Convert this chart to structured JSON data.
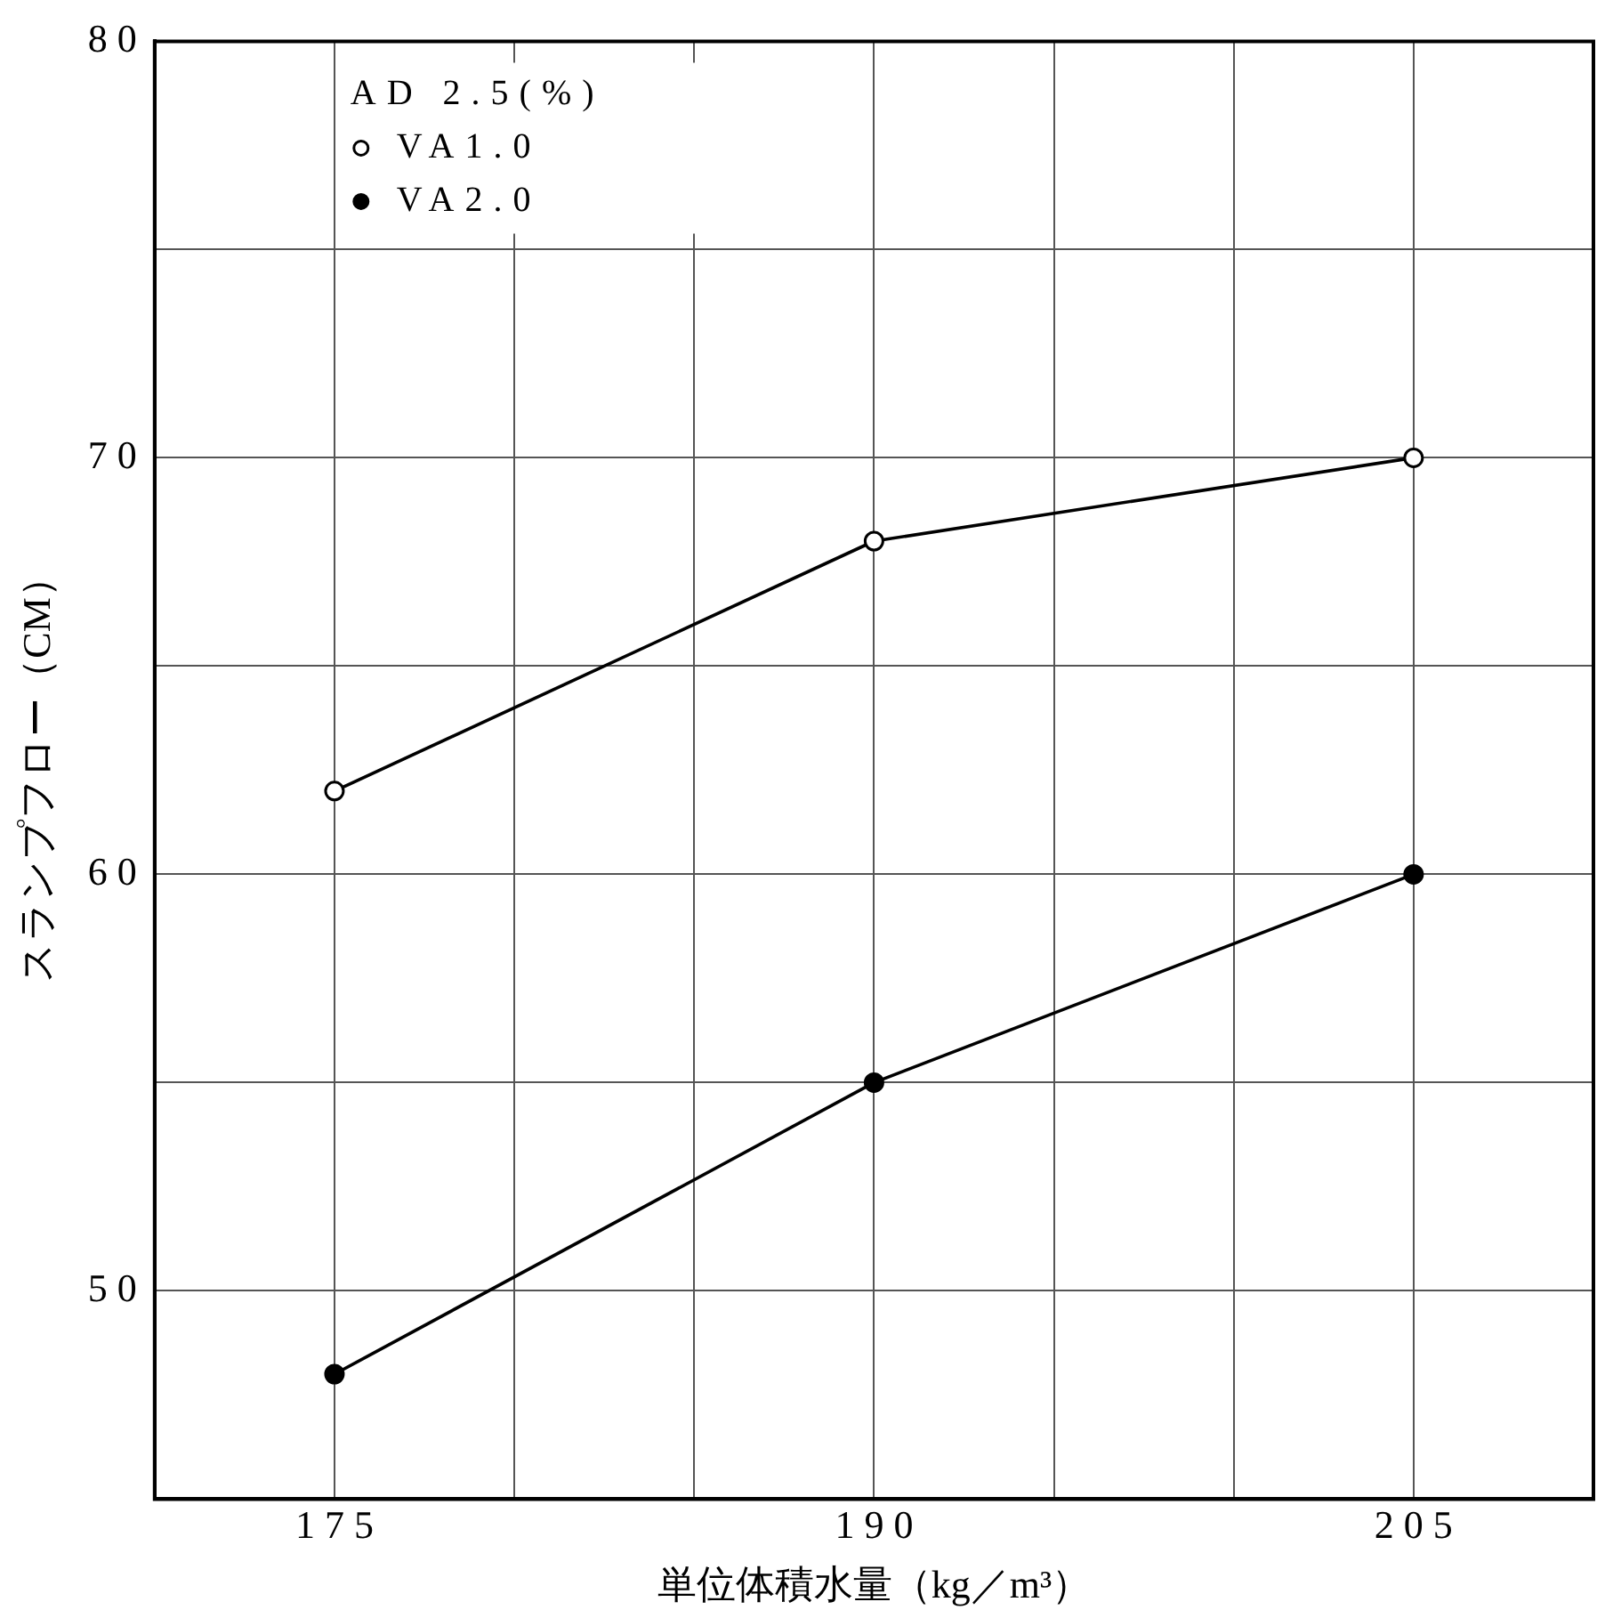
{
  "chart_data": {
    "type": "line",
    "xlabel": "単位体積水量（kg／m³）",
    "ylabel": "スランプフロー（CM）",
    "legend_title": "AD 2.5(%)",
    "legend": "top left",
    "grid": true,
    "line_style": "solid",
    "x": [
      175,
      190,
      205
    ],
    "xlim": [
      170,
      210
    ],
    "xticks": [
      {
        "value": 170,
        "label": null
      },
      175,
      {
        "value": 180,
        "label": null
      },
      {
        "value": 185,
        "label": null
      },
      190,
      {
        "value": 195,
        "label": null
      },
      {
        "value": 200,
        "label": null
      },
      205,
      {
        "value": 210,
        "label": null
      }
    ],
    "ylim": [
      45,
      80
    ],
    "yticks": [
      {
        "value": 45,
        "label": null
      },
      50,
      {
        "value": 55,
        "label": null
      },
      60,
      {
        "value": 65,
        "label": null
      },
      70,
      {
        "value": 75,
        "label": null
      },
      80
    ],
    "series": [
      {
        "name": "VA1.0",
        "color": "#000000",
        "marker": "open-circle",
        "values": [
          62,
          68,
          70
        ]
      },
      {
        "name": "VA2.0",
        "color": "#000000",
        "marker": "circle",
        "values": [
          48,
          55,
          60
        ]
      }
    ]
  }
}
